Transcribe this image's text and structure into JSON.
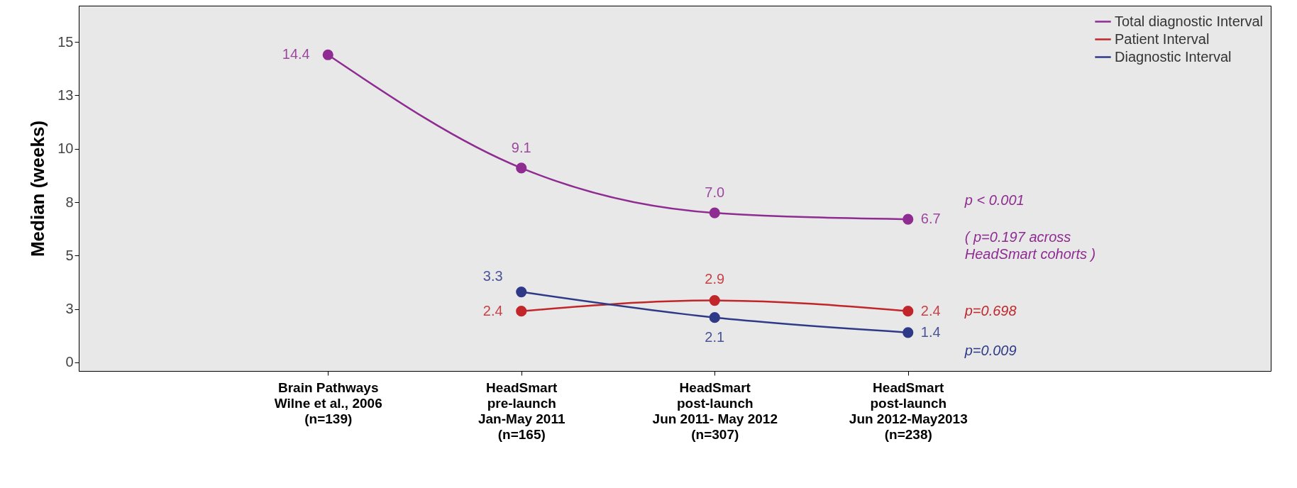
{
  "chart_data": {
    "type": "line",
    "ylabel": "Median (weeks)",
    "categories": [
      "Brain Pathways\nWilne et al., 2006\n(n=139)",
      "HeadSmart\npre-launch\nJan-May 2011\n(n=165)",
      "HeadSmart\npost-launch\nJun 2011- May 2012\n(n=307)",
      "HeadSmart\npost-launch\nJun 2012-May2013\n(n=238)"
    ],
    "series": [
      {
        "name": "Total diagnostic Interval",
        "color": "#8e2c91",
        "values": [
          14.4,
          9.1,
          7.0,
          6.7
        ],
        "value_labels": [
          "14.4",
          "9.1",
          "7.0",
          "6.7"
        ]
      },
      {
        "name": "Patient Interval",
        "color": "#c0262a",
        "values": [
          null,
          2.4,
          2.9,
          2.4
        ],
        "value_labels": [
          null,
          "2.4",
          "2.9",
          "2.4"
        ]
      },
      {
        "name": "Diagnostic Interval",
        "color": "#2e3a87",
        "values": [
          null,
          3.3,
          2.1,
          1.4
        ],
        "value_labels": [
          null,
          "3.3",
          "2.1",
          "1.4"
        ]
      }
    ],
    "ylim": [
      -0.4,
      16.7
    ],
    "yticks": [
      0,
      {
        "value": 2.5,
        "label": "3"
      },
      5,
      {
        "value": 7.5,
        "label": "8"
      },
      10,
      {
        "value": 12.5,
        "label": "13"
      },
      15
    ],
    "annotations": [
      "p < 0.001",
      "( p=0.197 across HeadSmart cohorts )",
      "p=0.698",
      "p=0.009"
    ],
    "grid": false,
    "legend": "top right",
    "marker": "circle",
    "line_style": "solid"
  }
}
